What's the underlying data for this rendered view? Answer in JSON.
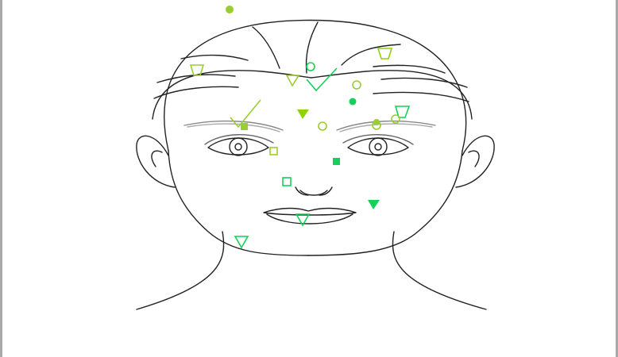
{
  "canvas": {
    "description_free": true
  },
  "colors": {
    "line_art": "#222222",
    "lime": "#9acd32",
    "lime_bright": "#8fd400",
    "green": "#14d15a",
    "frame_border": "#a9a9a9",
    "background": "#ffffff"
  },
  "markers": [
    {
      "name": "dot-filled-forehead-top",
      "shape": "circle-filled",
      "color": "lime"
    },
    {
      "name": "trapezoid-outline-left",
      "shape": "trapezoid",
      "color": "lime"
    },
    {
      "name": "trapezoid-outline-right-top",
      "shape": "trapezoid",
      "color": "green"
    },
    {
      "name": "circle-outline-center-top",
      "shape": "circle",
      "color": "green"
    },
    {
      "name": "triangle-outline-center",
      "shape": "triangle-down",
      "color": "lime"
    },
    {
      "name": "check-mark-right",
      "shape": "check",
      "color": "green"
    },
    {
      "name": "circle-outline-right",
      "shape": "circle",
      "color": "lime"
    },
    {
      "name": "dot-filled-right",
      "shape": "circle-filled",
      "color": "green"
    },
    {
      "name": "trapezoid-outline-right",
      "shape": "trapezoid",
      "color": "green"
    },
    {
      "name": "check-mark-left",
      "shape": "check",
      "color": "lime"
    },
    {
      "name": "triangle-filled-center",
      "shape": "triangle-down-filled",
      "color": "lime"
    },
    {
      "name": "square-filled-left",
      "shape": "square-filled",
      "color": "lime"
    },
    {
      "name": "circle-outline-between-brows",
      "shape": "circle",
      "color": "lime"
    },
    {
      "name": "circle-outline-right-brow",
      "shape": "circle",
      "color": "lime"
    },
    {
      "name": "dot-filled-right-brow",
      "shape": "circle-filled",
      "color": "lime"
    },
    {
      "name": "circle-outline-right-brow-2",
      "shape": "circle",
      "color": "lime"
    },
    {
      "name": "square-outline-left-eye",
      "shape": "square",
      "color": "lime"
    },
    {
      "name": "square-filled-right-cheek",
      "shape": "square-filled",
      "color": "green"
    },
    {
      "name": "square-outline-nose",
      "shape": "square",
      "color": "green"
    },
    {
      "name": "triangle-filled-right-cheek",
      "shape": "triangle-down-filled",
      "color": "green"
    },
    {
      "name": "triangle-outline-mouth",
      "shape": "triangle-down",
      "color": "green"
    },
    {
      "name": "triangle-outline-jaw",
      "shape": "triangle-down",
      "color": "green"
    }
  ]
}
